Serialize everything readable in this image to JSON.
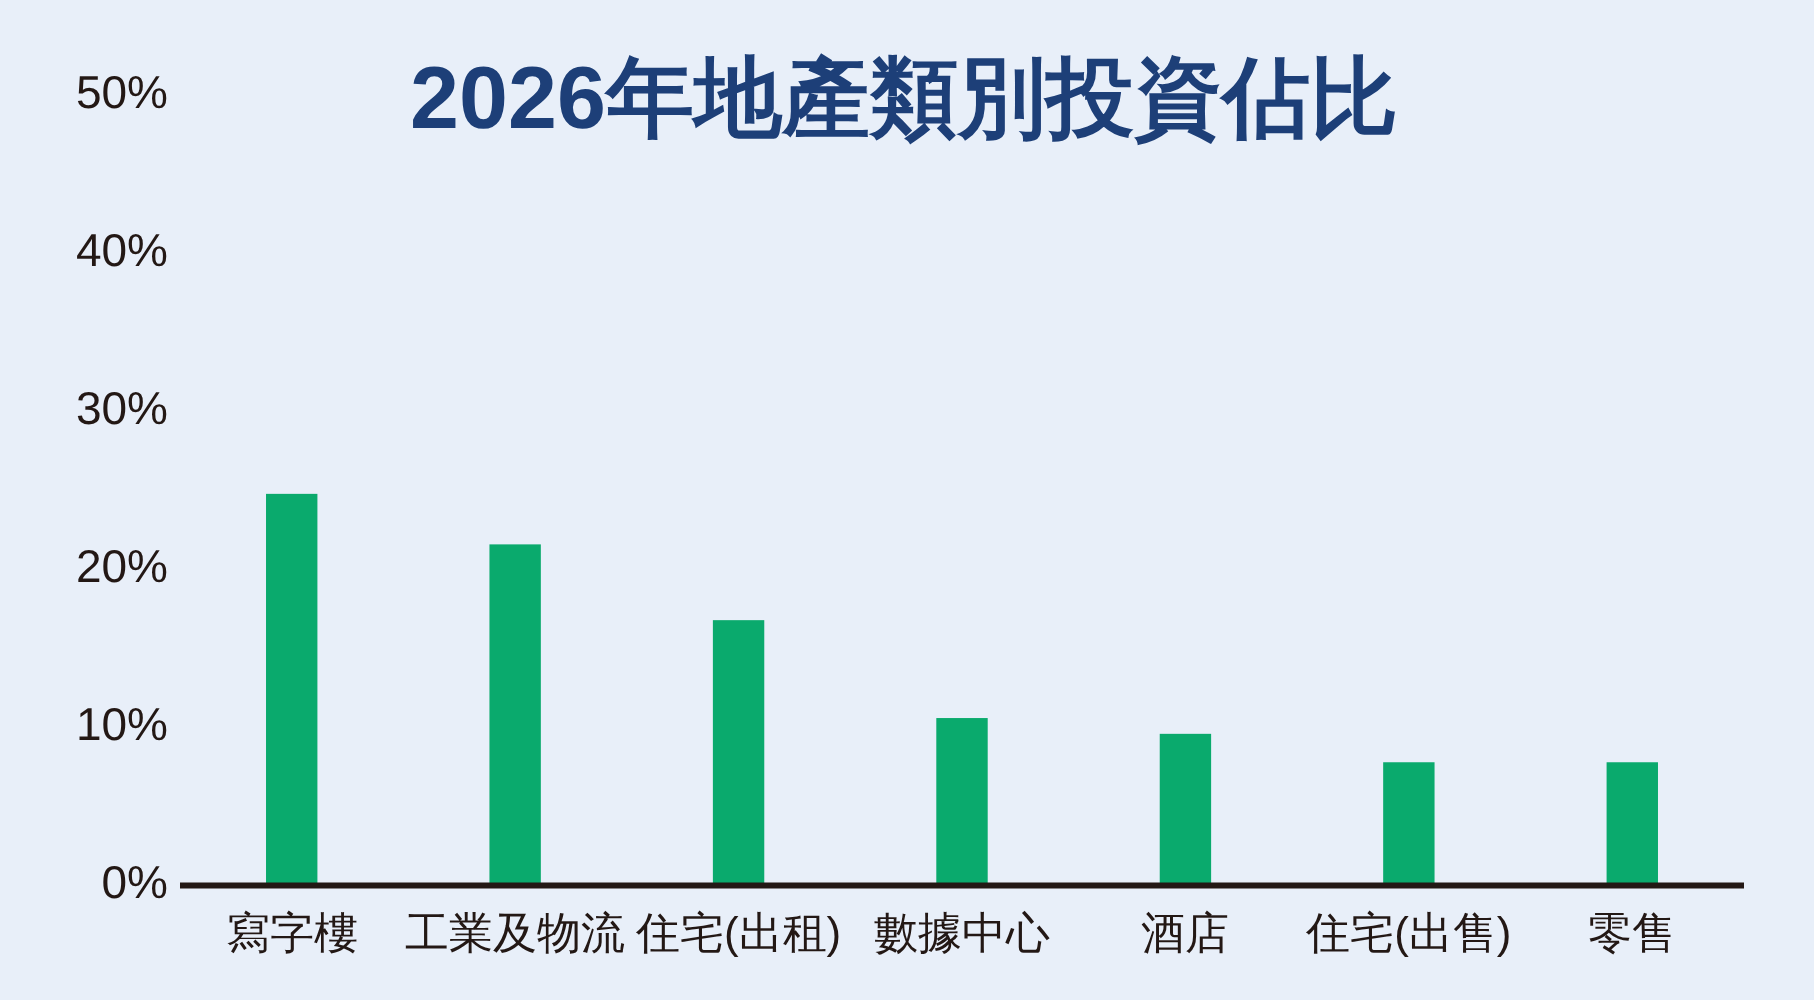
{
  "chart_data": {
    "type": "bar",
    "title": "2026年地產類別投資佔比",
    "categories": [
      "寫字樓",
      "工業及物流",
      "住宅(出租)",
      "數據中心",
      "酒店",
      "住宅(出售)",
      "零售"
    ],
    "values": [
      24.8,
      21.6,
      16.8,
      10.6,
      9.6,
      7.8,
      7.8
    ],
    "color": "#0aaa6d",
    "ylim": [
      0,
      50
    ],
    "yticks": [
      {
        "value": 0,
        "label": "0%"
      },
      {
        "value": 10,
        "label": "10%"
      },
      {
        "value": 20,
        "label": "20%"
      },
      {
        "value": 30,
        "label": "30%"
      },
      {
        "value": 40,
        "label": "40%"
      },
      {
        "value": 50,
        "label": "50%"
      }
    ],
    "grid": false
  }
}
